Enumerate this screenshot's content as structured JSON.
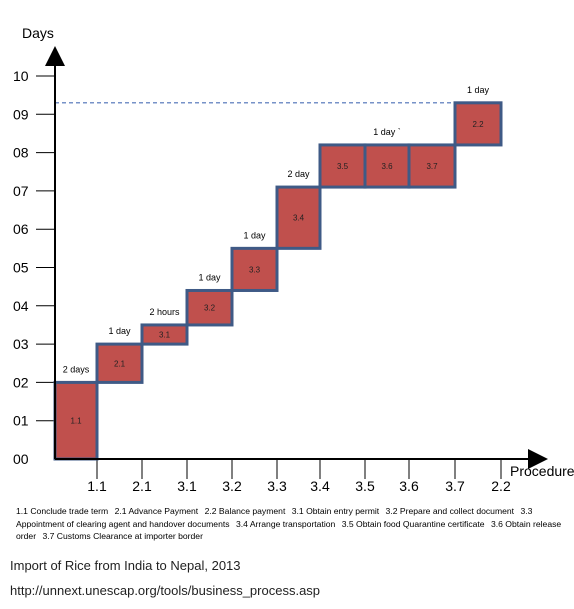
{
  "chart_data": {
    "type": "step",
    "ylabel": "Days",
    "xlabel": "Procedure",
    "y_ticks": [
      "00",
      "01",
      "02",
      "03",
      "04",
      "05",
      "06",
      "07",
      "08",
      "09",
      "10"
    ],
    "x_ticks": [
      "1.1",
      "2.1",
      "3.1",
      "3.2",
      "3.3",
      "3.4",
      "3.5",
      "3.6",
      "3.7",
      "2.2"
    ],
    "steps": [
      {
        "id": "1.1",
        "start": 0,
        "end": 2,
        "duration": "2 days"
      },
      {
        "id": "2.1",
        "start": 2,
        "end": 3,
        "duration": "1 day"
      },
      {
        "id": "3.1",
        "start": 3,
        "end": 3.5,
        "duration": "2 hours"
      },
      {
        "id": "3.2",
        "start": 3.5,
        "end": 4.4,
        "duration": "1 day"
      },
      {
        "id": "3.3",
        "start": 4.4,
        "end": 5.5,
        "duration": "1 day"
      },
      {
        "id": "3.4",
        "start": 5.5,
        "end": 7.1,
        "duration": "2 day"
      },
      {
        "id": "3.5",
        "start": 7.1,
        "end": 8.2,
        "duration": ""
      },
      {
        "id": "3.6",
        "start": 7.1,
        "end": 8.2,
        "duration": "1 day `"
      },
      {
        "id": "3.7",
        "start": 7.1,
        "end": 8.2,
        "duration": ""
      },
      {
        "id": "2.2",
        "start": 8.2,
        "end": 9.3,
        "duration": "1 day"
      }
    ],
    "total_line": 9.3,
    "colors": {
      "box_fill": "#c0504d",
      "box_stroke": "#3f5a86",
      "axis": "#000000",
      "dashed_line": "#4a6fb5"
    }
  },
  "legend": [
    "1.1 Conclude trade term",
    "2.1 Advance Payment",
    "2.2 Balance payment",
    "3.1 Obtain entry permit",
    "3.2 Prepare and collect document",
    "3.3 Appointment of clearing agent and handover documents",
    "3.4 Arrange transportation",
    "3.5 Obtain food Quarantine certificate",
    "3.6 Obtain release order",
    "3.7 Customs Clearance at importer border"
  ],
  "caption": {
    "title": "Import of Rice from India to Nepal, 2013",
    "source": "http://unnext.unescap.org/tools/business_process.asp"
  }
}
